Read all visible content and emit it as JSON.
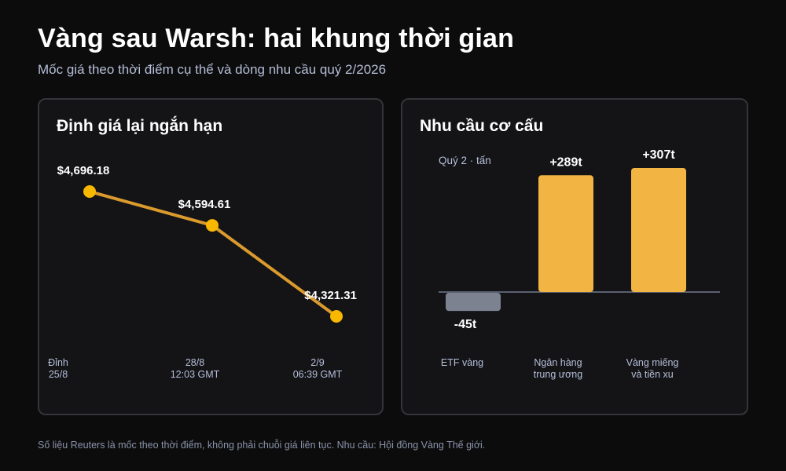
{
  "title": "Vàng sau Warsh: hai khung thời gian",
  "subtitle": "Mốc giá theo thời điểm cụ thể và dòng nhu cầu quý 2/2026",
  "footnote": "Số liệu Reuters là mốc theo thời điểm, không phải chuỗi giá liên tục. Nhu cầu: Hội đồng Vàng Thế giới.",
  "colors": {
    "background": "#0c0c0c",
    "panel": "#141417",
    "panel_border": "#34343a",
    "gold_line": "#f0a830",
    "gold_marker": "#f8b800",
    "gold_bar": "#f2b544",
    "negative_bar": "#7c8290",
    "axis_text": "#b5bfd8",
    "baseline": "#5a6070"
  },
  "chart_data": [
    {
      "type": "line",
      "title": "Định giá lại ngắn hạn",
      "x": [
        [
          "Đỉnh",
          "25/8"
        ],
        [
          "28/8",
          "12:03 GMT"
        ],
        [
          "2/9",
          "06:39 GMT"
        ]
      ],
      "values": [
        4696.18,
        4594.61,
        4321.31
      ],
      "labels": [
        "$4,696.18",
        "$4,594.61",
        "$4,321.31"
      ],
      "ylim": [
        4321.31,
        4696.18
      ],
      "grid": false,
      "legend": "none"
    },
    {
      "type": "bar",
      "title": "Nhu cầu cơ cấu",
      "unit_note": "Quý 2 · tấn",
      "categories": [
        [
          "ETF vàng"
        ],
        [
          "Ngân hàng",
          "trung ương"
        ],
        [
          "Vàng miếng",
          "và tiền xu"
        ]
      ],
      "values": [
        -45,
        289,
        307
      ],
      "labels": [
        "-45t",
        "+289t",
        "+307t"
      ],
      "grid": false,
      "legend": "none"
    }
  ]
}
